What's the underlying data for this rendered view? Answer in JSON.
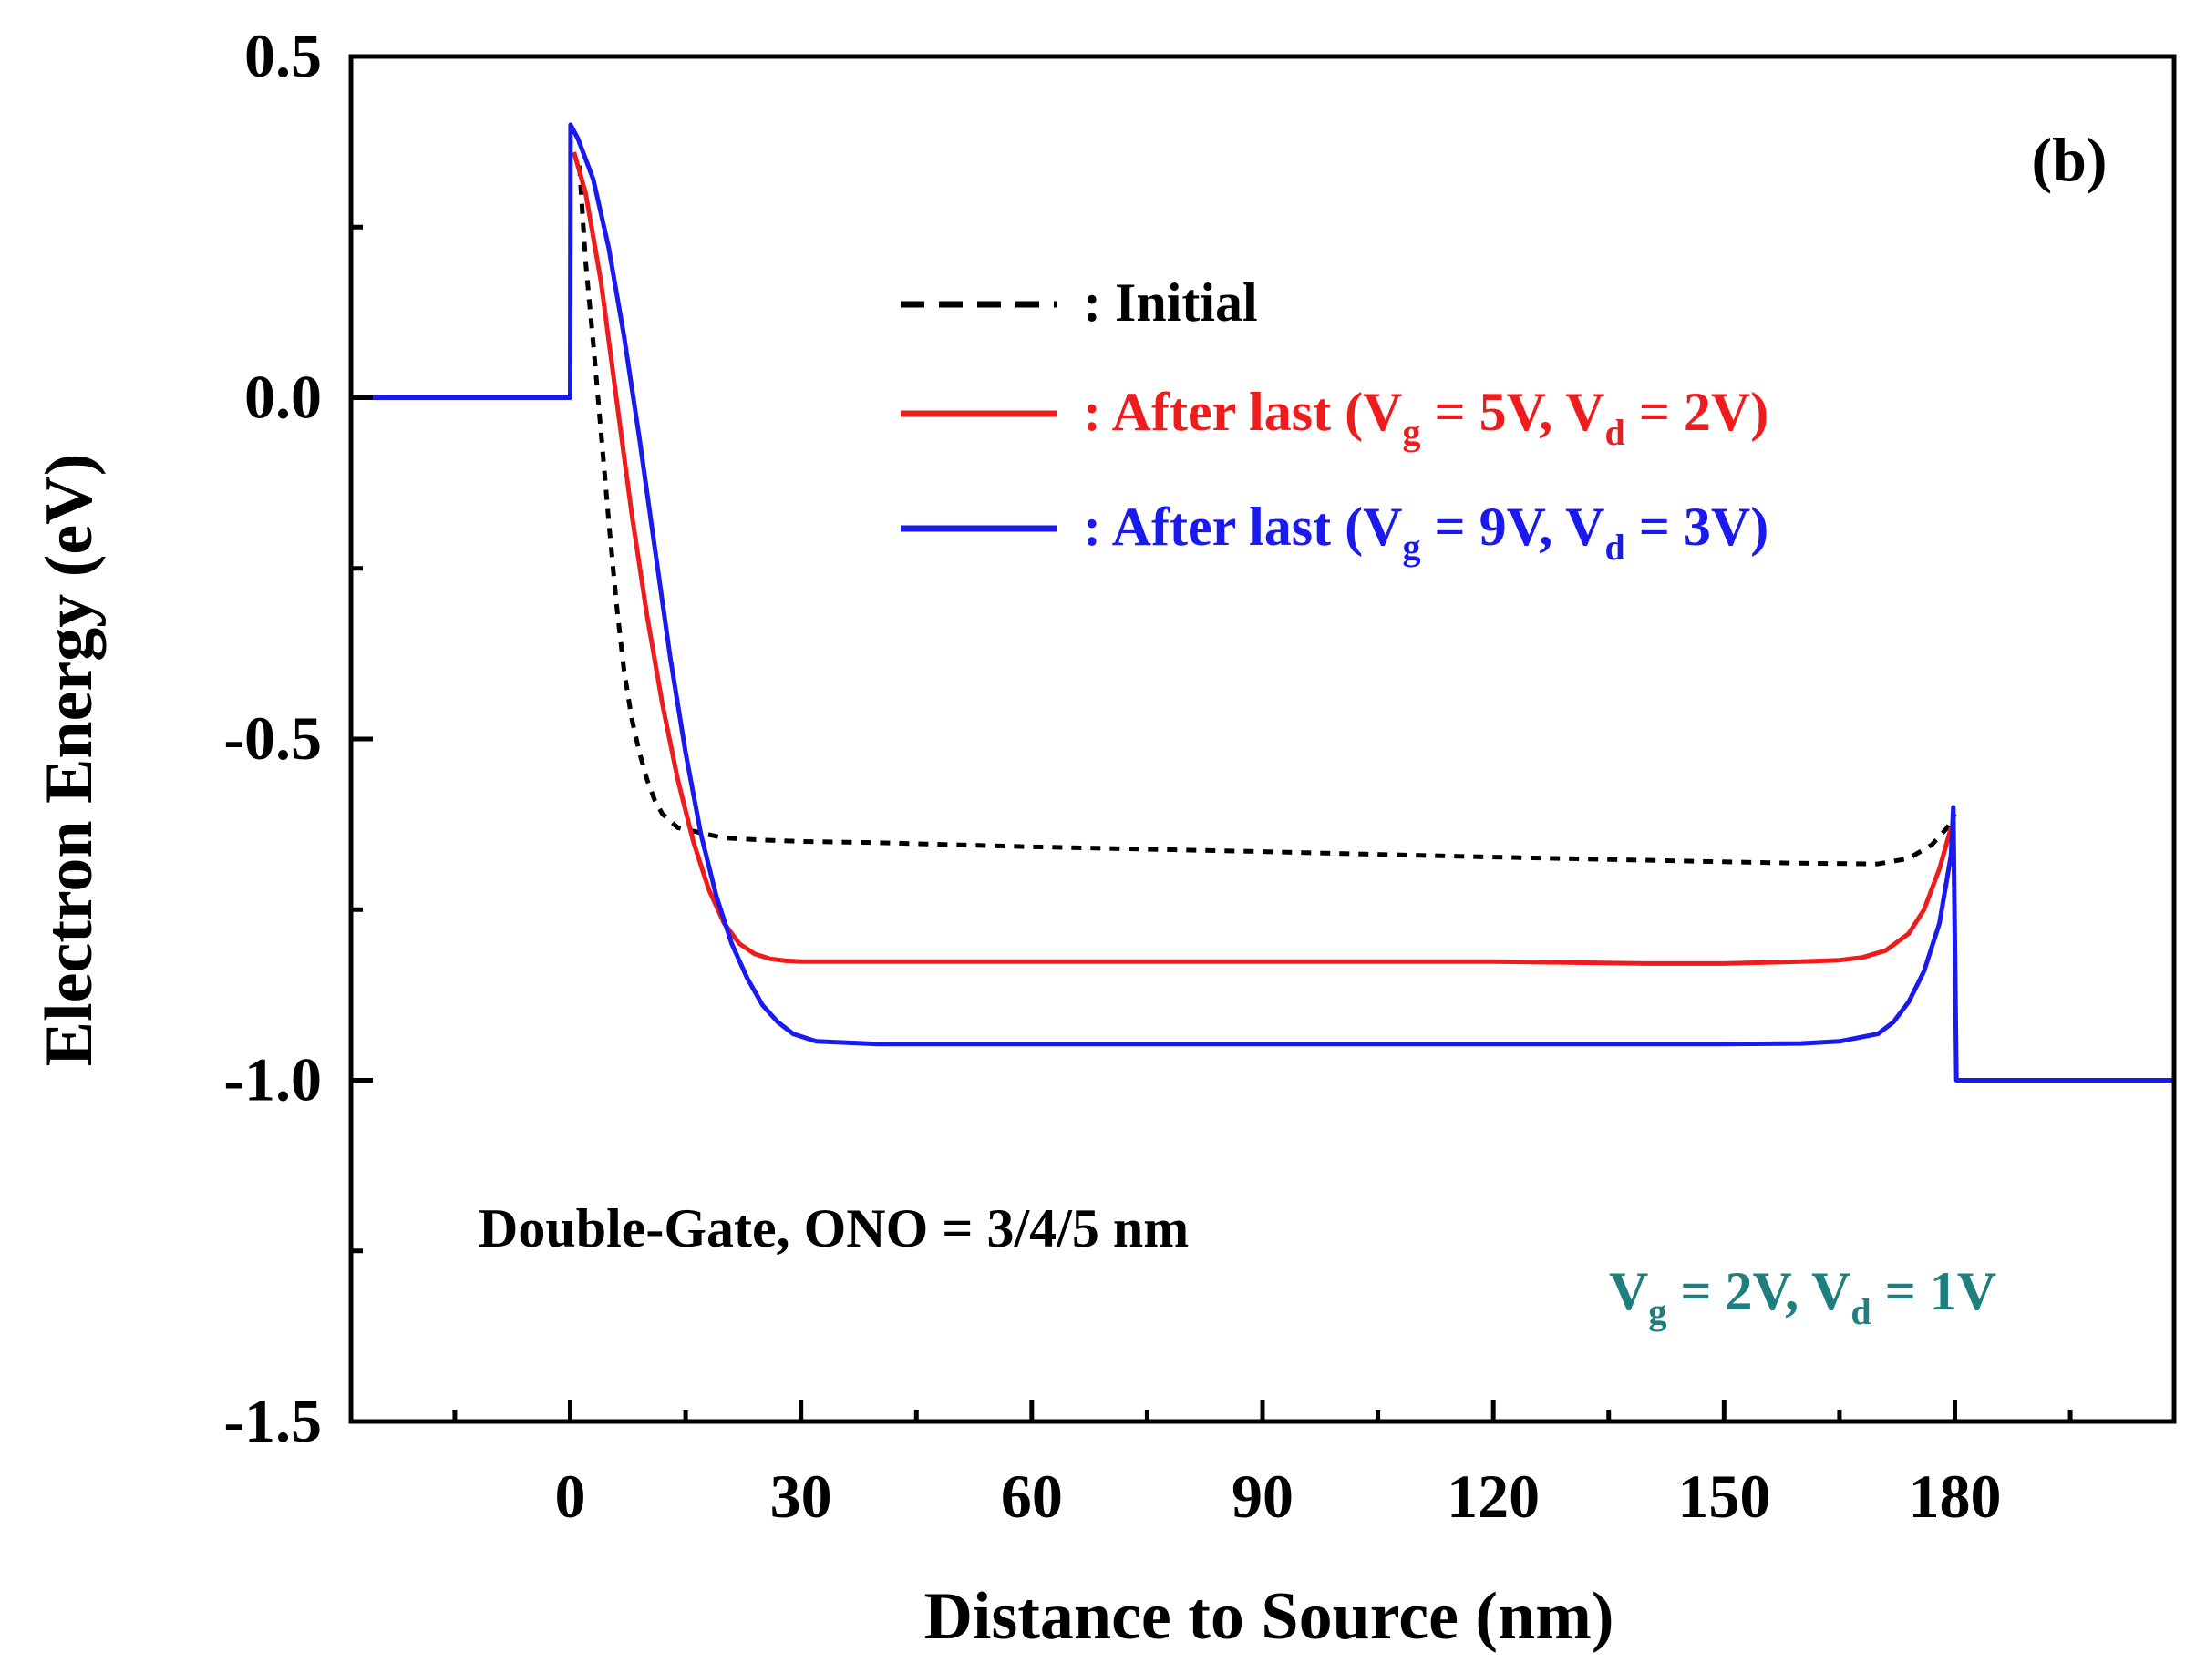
{
  "chart_data": {
    "type": "line",
    "panel_label": "(b)",
    "xlabel": "Distance to Source (nm)",
    "ylabel": "Electron Energy (eV)",
    "xlim": [
      -28.5,
      208.5
    ],
    "ylim": [
      -1.5,
      0.5
    ],
    "x_ticks": [
      0,
      30,
      60,
      90,
      120,
      150,
      180
    ],
    "x_tick_labels": [
      "0",
      "30",
      "60",
      "90",
      "120",
      "150",
      "180"
    ],
    "x_minor_ticks": [
      -15,
      15,
      45,
      75,
      105,
      135,
      165,
      195
    ],
    "y_ticks": [
      0.5,
      0.0,
      -0.5,
      -1.0,
      -1.5
    ],
    "y_tick_labels": [
      "0.5",
      "0.0",
      "-0.5",
      "-1.0",
      "-1.5"
    ],
    "y_minor_ticks": [
      0.25,
      -0.25,
      -0.75,
      -1.25
    ],
    "annotations": [
      {
        "id": "structure",
        "text": "Double-Gate, ONO = 3/4/5 nm",
        "color": "#000000"
      },
      {
        "id": "bias",
        "parts": [
          "V",
          "g",
          " = 2V, V",
          "d",
          " = 1V"
        ],
        "color": "#1f7f7f"
      }
    ],
    "series": [
      {
        "name": "Initial",
        "legend_parts": [
          ": Initial"
        ],
        "color": "#000000",
        "dash": "dashed",
        "x": [
          1.2,
          2,
          3,
          4,
          5,
          6,
          7,
          8,
          9,
          10,
          11,
          12,
          13,
          14,
          16,
          18,
          20,
          25,
          30,
          40,
          60,
          90,
          120,
          150,
          160,
          170,
          174,
          177,
          179,
          180
        ],
        "y": [
          0.34,
          0.2,
          0.08,
          -0.05,
          -0.18,
          -0.3,
          -0.4,
          -0.47,
          -0.52,
          -0.56,
          -0.59,
          -0.61,
          -0.62,
          -0.63,
          -0.635,
          -0.64,
          -0.645,
          -0.648,
          -0.65,
          -0.652,
          -0.658,
          -0.665,
          -0.673,
          -0.68,
          -0.682,
          -0.683,
          -0.675,
          -0.655,
          -0.63,
          -0.61
        ]
      },
      {
        "name": "After last (Vg = 5V, Vd = 2V)",
        "legend_parts": [
          ": After last (V",
          "g",
          " = 5V, V",
          "d",
          " = 2V)"
        ],
        "color": "#ee1c1c",
        "dash": "solid",
        "x": [
          0.5,
          2,
          4,
          6,
          8,
          10,
          12,
          14,
          16,
          18,
          20,
          22,
          24,
          26,
          28,
          30,
          40,
          60,
          90,
          120,
          140,
          150,
          160,
          165,
          168,
          171,
          174,
          176,
          178,
          179.5
        ],
        "y": [
          0.36,
          0.3,
          0.17,
          0.0,
          -0.17,
          -0.32,
          -0.45,
          -0.56,
          -0.65,
          -0.72,
          -0.77,
          -0.8,
          -0.815,
          -0.822,
          -0.825,
          -0.826,
          -0.826,
          -0.826,
          -0.826,
          -0.826,
          -0.829,
          -0.829,
          -0.826,
          -0.824,
          -0.82,
          -0.81,
          -0.785,
          -0.75,
          -0.69,
          -0.63
        ]
      },
      {
        "name": "After last (Vg = 9V, Vd = 3V)",
        "legend_parts": [
          ": After last (V",
          "g",
          " = 9V, V",
          "d",
          " = 3V)"
        ],
        "color": "#1a1aee",
        "dash": "solid",
        "x": [
          -28.5,
          0,
          0.05,
          1,
          3,
          5,
          7,
          9,
          11,
          13,
          15,
          17,
          19,
          21,
          23,
          25,
          27,
          29,
          32,
          36,
          40,
          60,
          90,
          120,
          150,
          160,
          165,
          170,
          172,
          174,
          176,
          178,
          179.5,
          179.8,
          180.2,
          208.5
        ],
        "y": [
          0.0,
          0.0,
          0.4,
          0.38,
          0.32,
          0.22,
          0.09,
          -0.06,
          -0.22,
          -0.38,
          -0.52,
          -0.64,
          -0.73,
          -0.8,
          -0.85,
          -0.89,
          -0.915,
          -0.932,
          -0.943,
          -0.945,
          -0.947,
          -0.947,
          -0.947,
          -0.947,
          -0.947,
          -0.946,
          -0.943,
          -0.932,
          -0.915,
          -0.885,
          -0.84,
          -0.77,
          -0.67,
          -0.6,
          -1.0,
          -1.0
        ]
      }
    ]
  }
}
